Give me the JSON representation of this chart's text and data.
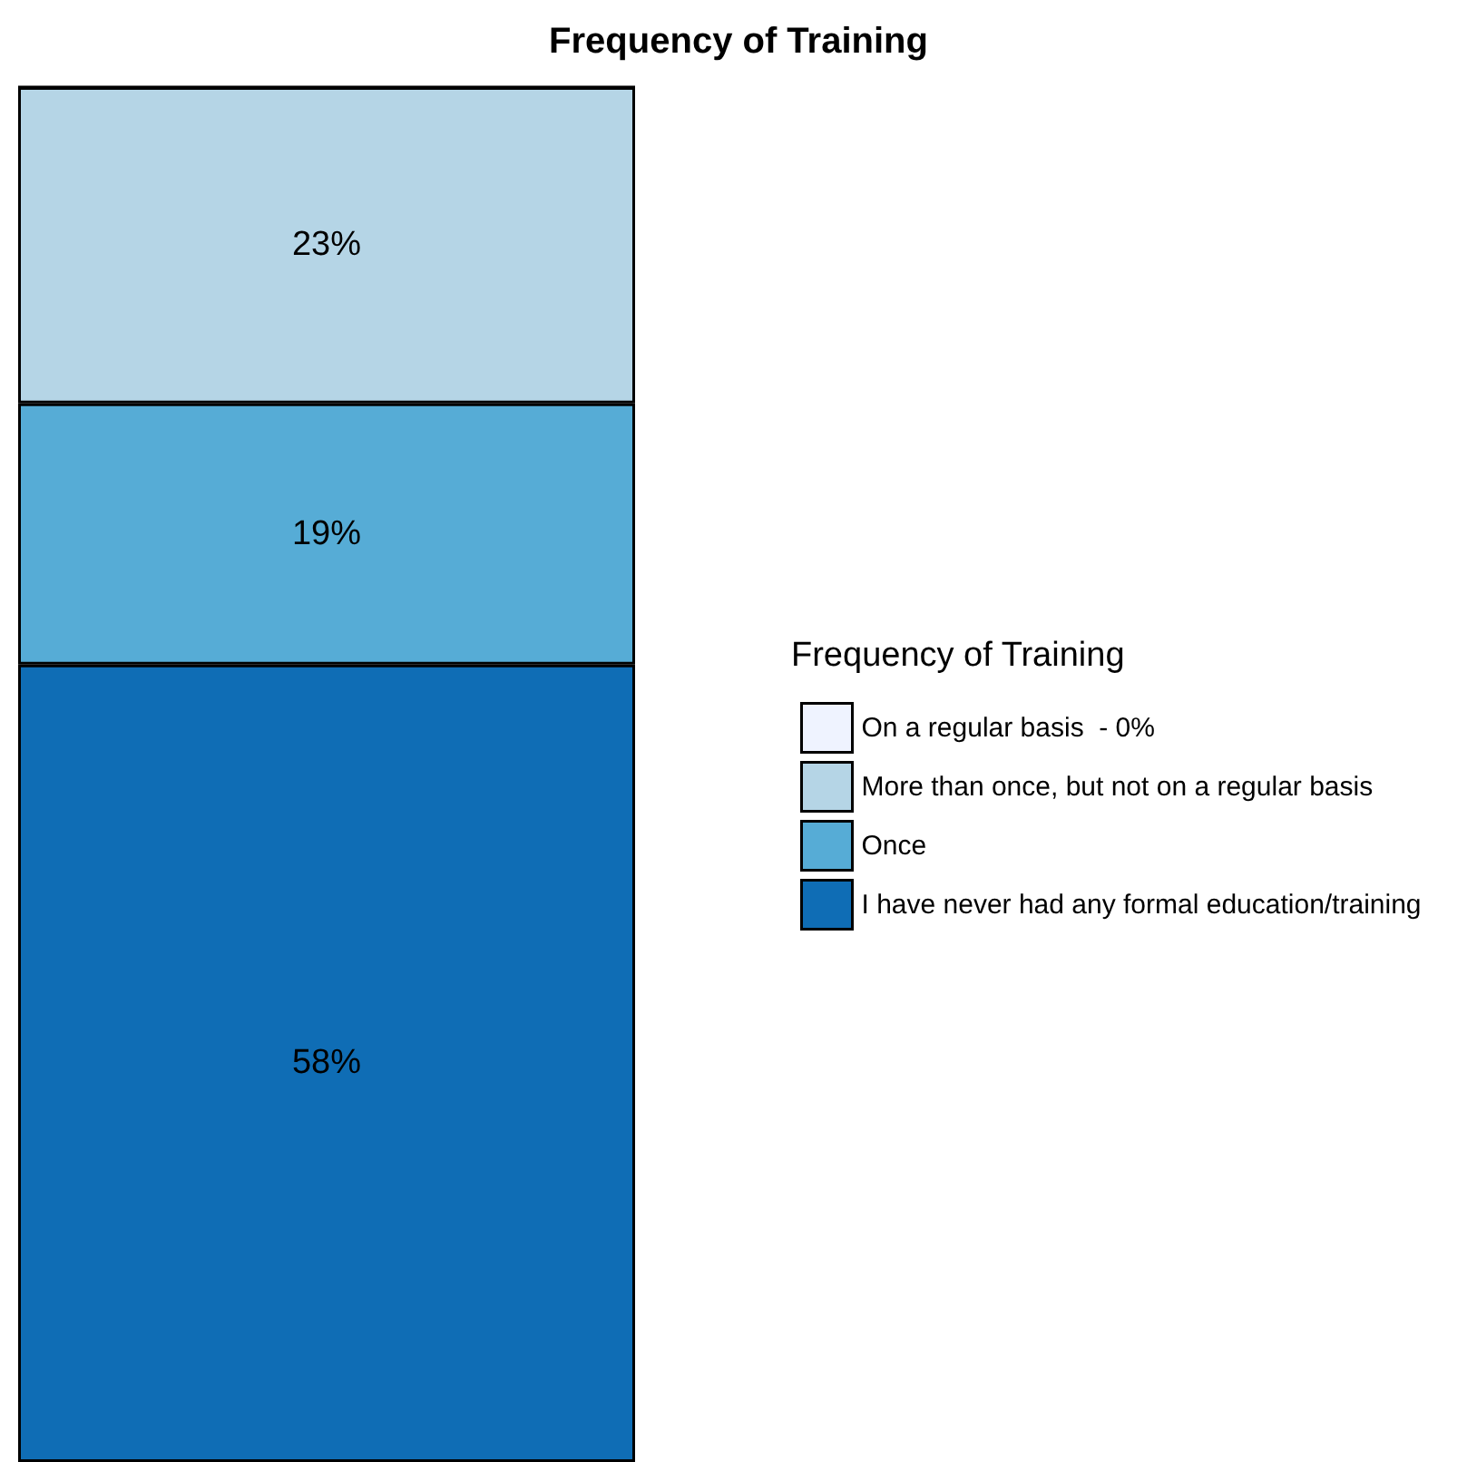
{
  "chart_data": {
    "type": "bar",
    "title": "Frequency of Training",
    "legend_title": "Frequency of Training",
    "categories": [
      null
    ],
    "stacked": true,
    "tick_labels": false,
    "legend": "right",
    "series": [
      {
        "name": "I have never had any formal education/training",
        "color": "#0f6db5",
        "values": [
          58
        ],
        "value_labels": [
          "58%"
        ]
      },
      {
        "name": "Once",
        "color": "#56acd6",
        "values": [
          19
        ],
        "value_labels": [
          "19%"
        ]
      },
      {
        "name": "More than once, but not on a regular basis",
        "color": "#b5d5e6",
        "values": [
          23
        ],
        "value_labels": [
          "23%"
        ]
      },
      {
        "name": "On a regular basis  - 0%",
        "color": "#eff3ff",
        "values": [
          0
        ],
        "value_labels": [
          null
        ]
      }
    ]
  }
}
